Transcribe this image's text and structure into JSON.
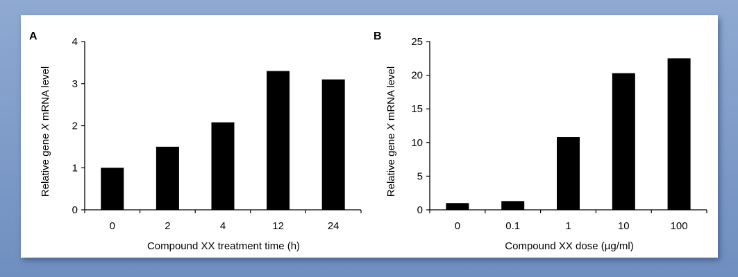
{
  "chart_data": [
    {
      "type": "bar",
      "panel_label": "A",
      "categories": [
        "0",
        "2",
        "4",
        "12",
        "24"
      ],
      "values": [
        1.0,
        1.5,
        2.08,
        3.3,
        3.1
      ],
      "ylim": [
        0,
        4
      ],
      "yticks": [
        "0",
        "1",
        "2",
        "3",
        "4"
      ],
      "xlabel": "Compound XX treatment time (h)",
      "ylabel_parts": [
        "Relative gene ",
        "X",
        " mRNA level"
      ],
      "bar_color": "#000000",
      "grid": false,
      "legend": "none"
    },
    {
      "type": "bar",
      "panel_label": "B",
      "categories": [
        "0",
        "0.1",
        "1",
        "10",
        "100"
      ],
      "values": [
        1.0,
        1.3,
        10.8,
        20.3,
        22.5
      ],
      "ylim": [
        0,
        25
      ],
      "yticks": [
        "0",
        "5",
        "10",
        "15",
        "20",
        "25"
      ],
      "xlabel": "Compound XX dose (µg/ml)",
      "ylabel_parts": [
        "Relative gene ",
        "X",
        " mRNA level"
      ],
      "bar_color": "#000000",
      "grid": false,
      "legend": "none"
    }
  ]
}
